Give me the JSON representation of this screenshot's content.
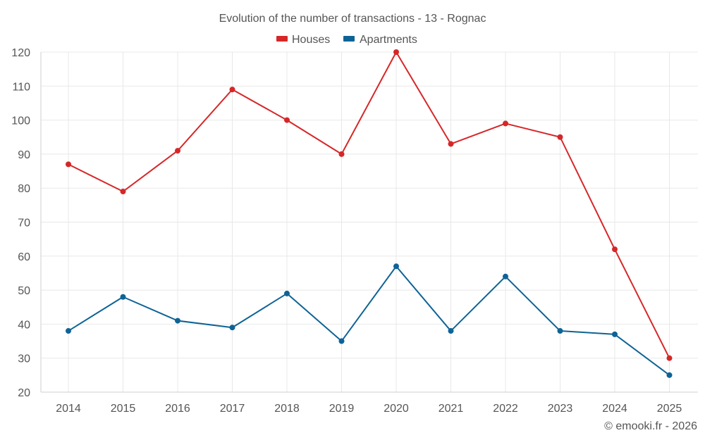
{
  "chart_data": {
    "type": "line",
    "title": "Evolution of the number of transactions - 13 - Rognac",
    "categories": [
      "2014",
      "2015",
      "2016",
      "2017",
      "2018",
      "2019",
      "2020",
      "2021",
      "2022",
      "2023",
      "2024",
      "2025"
    ],
    "series": [
      {
        "name": "Houses",
        "color": "#d62728",
        "values": [
          87,
          79,
          91,
          109,
          100,
          90,
          120,
          93,
          99,
          95,
          62,
          30
        ]
      },
      {
        "name": "Apartments",
        "color": "#0e6396",
        "values": [
          38,
          48,
          41,
          39,
          49,
          35,
          57,
          38,
          54,
          38,
          37,
          25
        ]
      }
    ],
    "ylim": [
      20,
      120
    ],
    "yticks": [
      "20",
      "30",
      "40",
      "50",
      "60",
      "70",
      "80",
      "90",
      "100",
      "110",
      "120"
    ],
    "grid": true,
    "legend_position": "top-center",
    "xlabel": "",
    "ylabel": ""
  },
  "credit": "© emooki.fr - 2026"
}
